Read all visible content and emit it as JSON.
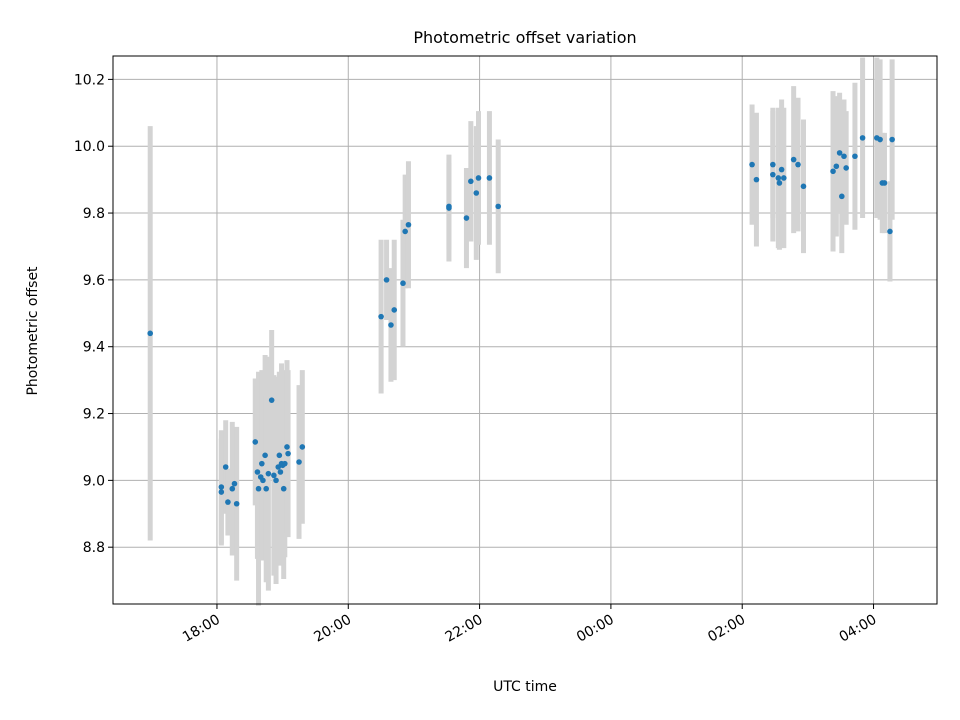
{
  "chart_data": {
    "type": "scatter",
    "title": "Photometric offset variation",
    "xlabel": "UTC time",
    "ylabel": "Photometric offset",
    "xlim": [
      "16:25",
      "04:58 (+1 day)"
    ],
    "ylim": [
      8.63,
      10.27
    ],
    "y_ticks": [
      "8.8",
      "9.0",
      "9.2",
      "9.4",
      "9.6",
      "9.8",
      "10.0",
      "10.2"
    ],
    "x_ticks": [
      "18:00",
      "20:00",
      "22:00",
      "00:00",
      "02:00",
      "04:00"
    ],
    "grid": true,
    "marker_color": "#1f77b4",
    "errorbar_color": "#d3d3d3",
    "series": [
      {
        "x": [
          "16:59",
          "18:04",
          "18:04",
          "18:08",
          "18:10",
          "18:14",
          "18:16",
          "18:18",
          "18:35",
          "18:37",
          "18:38",
          "18:40",
          "18:41",
          "18:42",
          "18:44",
          "18:45",
          "18:47",
          "18:50",
          "18:52",
          "18:54",
          "18:56",
          "18:57",
          "18:58",
          "18:59",
          "19:00",
          "19:01",
          "19:02",
          "19:04",
          "19:05",
          "19:15",
          "19:18",
          "20:30",
          "20:35",
          "20:39",
          "20:42",
          "20:50",
          "20:52",
          "20:55",
          "21:32",
          "21:32",
          "21:48",
          "21:52",
          "21:57",
          "21:59",
          "22:09",
          "22:17",
          "02:09",
          "02:13",
          "02:28",
          "02:28",
          "02:33",
          "02:34",
          "02:36",
          "02:38",
          "02:47",
          "02:51",
          "02:56",
          "03:23",
          "03:26",
          "03:29",
          "03:31",
          "03:33",
          "03:35",
          "03:43",
          "03:50",
          "04:03",
          "04:06",
          "04:08",
          "04:10",
          "04:15",
          "04:17"
        ],
        "y": [
          9.44,
          8.98,
          8.965,
          9.04,
          8.935,
          8.975,
          8.99,
          8.93,
          9.115,
          9.025,
          8.975,
          9.01,
          9.05,
          9.0,
          9.075,
          8.975,
          9.02,
          9.24,
          9.015,
          9.0,
          9.04,
          9.075,
          9.025,
          9.05,
          9.045,
          8.975,
          9.05,
          9.1,
          9.08,
          9.055,
          9.1,
          9.49,
          9.6,
          9.465,
          9.51,
          9.59,
          9.745,
          9.765,
          9.82,
          9.815,
          9.785,
          9.895,
          9.86,
          9.905,
          9.905,
          9.82,
          9.945,
          9.9,
          9.945,
          9.915,
          9.905,
          9.89,
          9.93,
          9.905,
          9.96,
          9.945,
          9.88,
          9.925,
          9.94,
          9.98,
          9.85,
          9.97,
          9.935,
          9.97,
          10.025,
          10.025,
          10.02,
          9.89,
          9.89,
          9.745,
          10.02
        ],
        "err": [
          0.62,
          0.17,
          0.16,
          0.14,
          0.1,
          0.2,
          0.14,
          0.23,
          0.19,
          0.26,
          0.35,
          0.22,
          0.28,
          0.24,
          0.3,
          0.28,
          0.35,
          0.21,
          0.3,
          0.31,
          0.24,
          0.25,
          0.28,
          0.3,
          0.27,
          0.27,
          0.28,
          0.26,
          0.25,
          0.23,
          0.23,
          0.23,
          0.12,
          0.17,
          0.21,
          0.19,
          0.17,
          0.19,
          0.13,
          0.16,
          0.15,
          0.18,
          0.2,
          0.2,
          0.2,
          0.2,
          0.18,
          0.2,
          0.16,
          0.2,
          0.21,
          0.2,
          0.21,
          0.21,
          0.22,
          0.2,
          0.2,
          0.24,
          0.21,
          0.18,
          0.17,
          0.17,
          0.17,
          0.22,
          0.24,
          0.24,
          0.24,
          0.15,
          0.15,
          0.15,
          0.24
        ]
      }
    ]
  }
}
